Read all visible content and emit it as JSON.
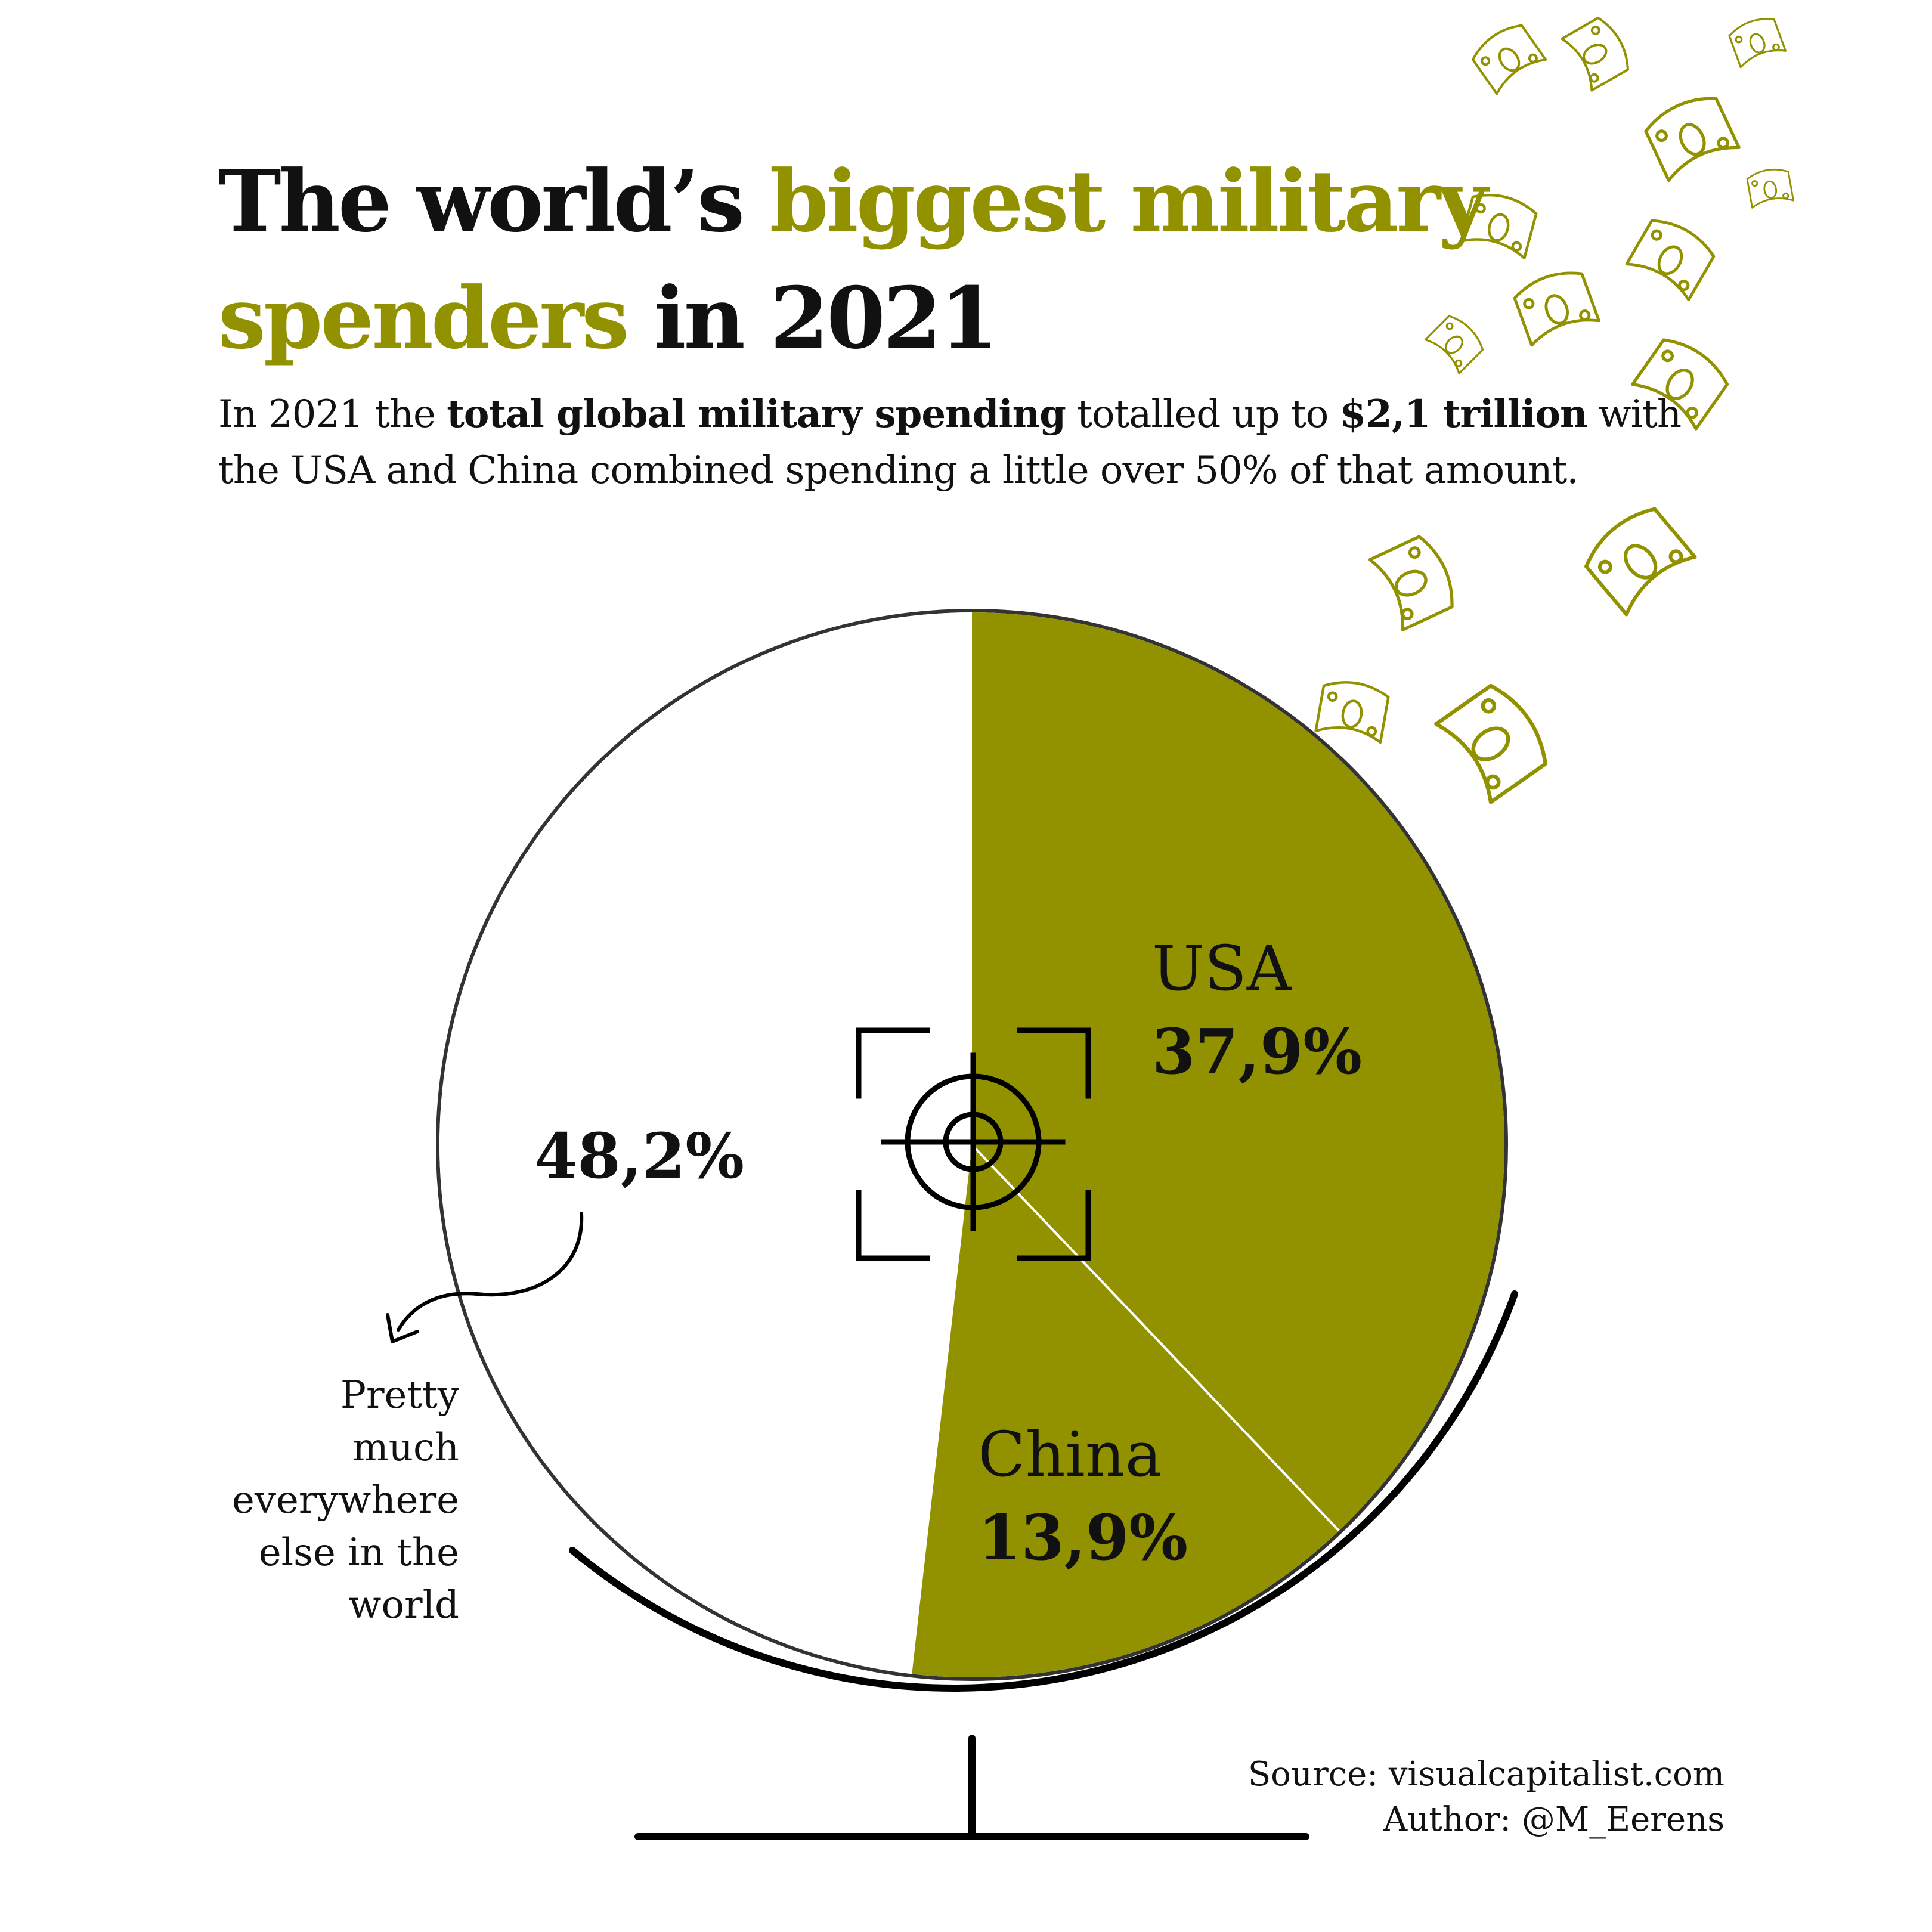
{
  "header": {
    "title_part1": "The world’s ",
    "title_part2": "biggest military",
    "title_part3": "spenders",
    "title_part4": " in 2021"
  },
  "subtitle": {
    "part1": "In 2021 the ",
    "part2": "total global military spending",
    "part3": " totalled up to ",
    "part4": "$2,1 trillion",
    "part5": " with the USA  and China  combined spending a little over 50% of that amount."
  },
  "colors": {
    "accent": "#929200",
    "text": "#111111",
    "background": "#ffffff"
  },
  "chart_data": {
    "type": "pie",
    "slices": [
      {
        "label": "USA",
        "value_label": "37,9%",
        "value": 37.9,
        "color": "#929200"
      },
      {
        "label": "China",
        "value_label": "13,9%",
        "value": 13.9,
        "color": "#929200"
      },
      {
        "label": "",
        "value_label": "48,2%",
        "value": 48.2,
        "color": "#ffffff"
      }
    ],
    "annotation": "Pretty much everywhere else in the world"
  },
  "annotation_lines": [
    "Pretty",
    "much",
    "everywhere",
    "else in the",
    "world"
  ],
  "icons": [
    "target-crosshair-icon",
    "money-bill-icon",
    "globe-stand-icon",
    "curved-arrow-icon"
  ],
  "footer": {
    "source": "Source: visualcapitalist.com",
    "author": "Author: @M_Eerens"
  }
}
